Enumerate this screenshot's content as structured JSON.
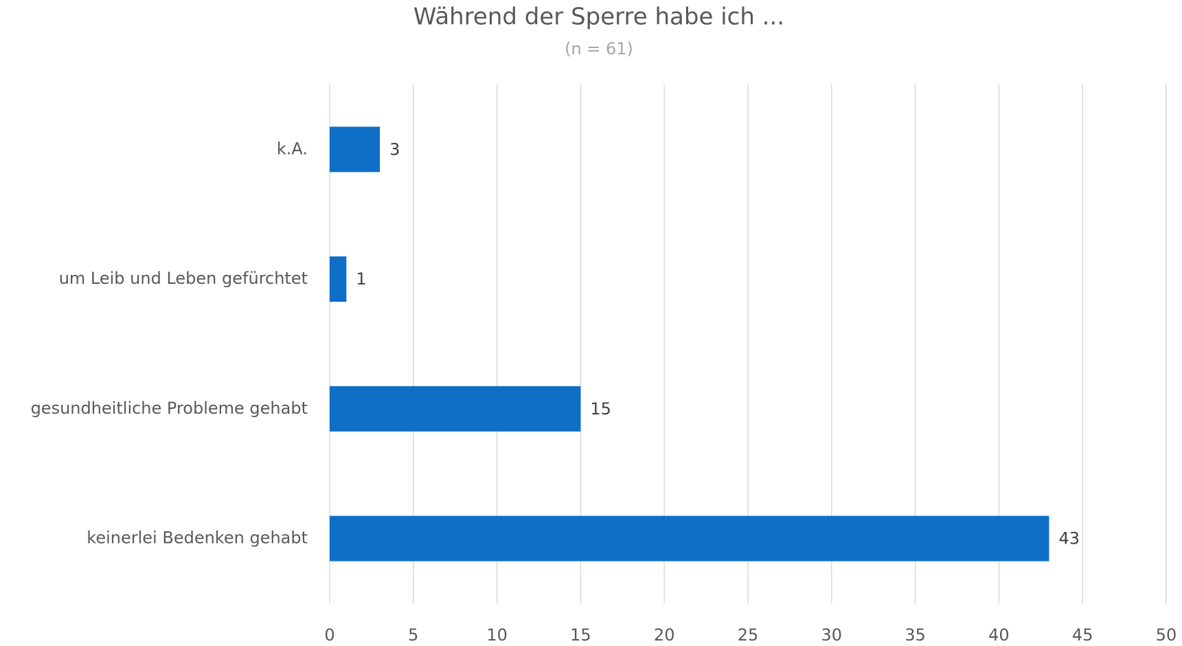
{
  "chart_data": {
    "type": "bar",
    "orientation": "horizontal",
    "title": "Während der Sperre habe ich ...",
    "subtitle": "(n = 61)",
    "categories": [
      "k.A.",
      "um Leib und Leben gefürchtet",
      "gesundheitliche Probleme gehabt",
      "keinerlei Bedenken gehabt"
    ],
    "values": [
      3,
      1,
      15,
      43
    ],
    "color": "#0f6fc6",
    "xlim": [
      0,
      50
    ],
    "xticks": [
      0,
      5,
      10,
      15,
      20,
      25,
      30,
      35,
      40,
      45,
      50
    ],
    "grid": true
  }
}
